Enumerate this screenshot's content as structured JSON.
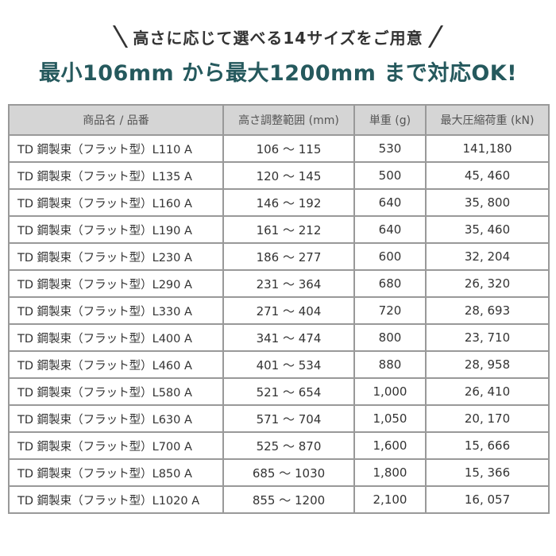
{
  "subtitle": "高さに応じて選べる14サイズをご用意",
  "headline": "最小106mm から最大1200mm まで対応OK!",
  "table": {
    "headers": [
      "商品名 / 品番",
      "高さ調整範囲 (mm)",
      "単重 (g)",
      "最大圧縮荷重 (kN)"
    ],
    "rows": [
      [
        "TD 鋼製束（フラット型）L110 A",
        "106 ～ 115",
        "530",
        "141,180"
      ],
      [
        "TD 鋼製束（フラット型）L135 A",
        "120 ～ 145",
        "500",
        "45, 460"
      ],
      [
        "TD 鋼製束（フラット型）L160 A",
        "146 ～ 192",
        "640",
        "35, 800"
      ],
      [
        "TD 鋼製束（フラット型）L190 A",
        "161 ～ 212",
        "640",
        "35, 460"
      ],
      [
        "TD 鋼製束（フラット型）L230 A",
        "186 ～ 277",
        "600",
        "32, 204"
      ],
      [
        "TD 鋼製束（フラット型）L290 A",
        "231 ～ 364",
        "680",
        "26, 320"
      ],
      [
        "TD 鋼製束（フラット型）L330 A",
        "271 ～ 404",
        "720",
        "28, 693"
      ],
      [
        "TD 鋼製束（フラット型）L400 A",
        "341 ～ 474",
        "800",
        "23, 710"
      ],
      [
        "TD 鋼製束（フラット型）L460 A",
        "401 ～ 534",
        "880",
        "28, 958"
      ],
      [
        "TD 鋼製束（フラット型）L580 A",
        "521 ～ 654",
        "1,000",
        "26, 410"
      ],
      [
        "TD 鋼製束（フラット型）L630 A",
        "571 ～ 704",
        "1,050",
        "20, 170"
      ],
      [
        "TD 鋼製束（フラット型）L700 A",
        "525 ～ 870",
        "1,600",
        "15, 666"
      ],
      [
        "TD 鋼製束（フラット型）L850 A",
        "685 ～ 1030",
        "1,800",
        "15, 366"
      ],
      [
        "TD 鋼製束（フラット型）L1020 A",
        "855 ～ 1200",
        "2,100",
        "16, 057"
      ]
    ]
  },
  "colors": {
    "headline": "#25595d",
    "header_bg": "#d5d5d5",
    "border": "#999999",
    "text": "#333333"
  }
}
